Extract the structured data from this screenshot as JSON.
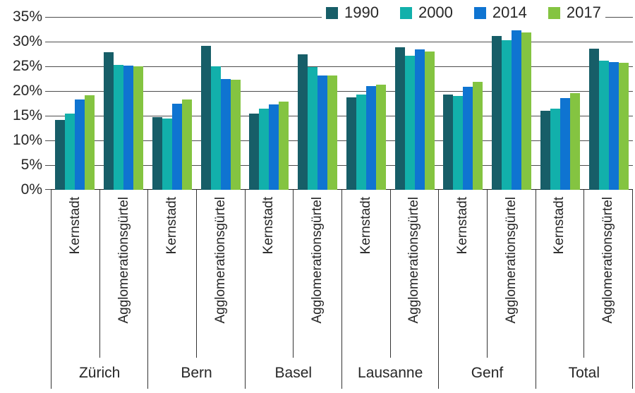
{
  "chart_data": {
    "type": "bar",
    "title": "",
    "unit": "%",
    "ylim": [
      0,
      35
    ],
    "ytick_step": 5,
    "ytick_labels": [
      "0%",
      "5%",
      "10%",
      "15%",
      "20%",
      "25%",
      "30%",
      "35%"
    ],
    "grid": true,
    "legend_position": "top-right",
    "series": [
      {
        "name": "1990",
        "color": "#175e68"
      },
      {
        "name": "2000",
        "color": "#12b0ab"
      },
      {
        "name": "2014",
        "color": "#0f74d1"
      },
      {
        "name": "2017",
        "color": "#84c441"
      }
    ],
    "groups": [
      {
        "label": "Zürich",
        "clusters": [
          {
            "label": "Kernstadt",
            "values": [
              14.2,
              15.5,
              18.3,
              19.1
            ]
          },
          {
            "label": "Agglomerationsgürtel",
            "values": [
              27.8,
              25.3,
              25.1,
              25.0
            ]
          }
        ]
      },
      {
        "label": "Bern",
        "clusters": [
          {
            "label": "Kernstadt",
            "values": [
              14.7,
              14.4,
              17.4,
              18.3
            ]
          },
          {
            "label": "Agglomerationsgürtel",
            "values": [
              29.1,
              25.0,
              22.5,
              22.3
            ]
          }
        ]
      },
      {
        "label": "Basel",
        "clusters": [
          {
            "label": "Kernstadt",
            "values": [
              15.5,
              16.5,
              17.3,
              17.9
            ]
          },
          {
            "label": "Agglomerationsgürtel",
            "values": [
              27.4,
              24.9,
              23.2,
              23.1
            ]
          }
        ]
      },
      {
        "label": "Lausanne",
        "clusters": [
          {
            "label": "Kernstadt",
            "values": [
              18.7,
              19.3,
              21.0,
              21.3
            ]
          },
          {
            "label": "Agglomerationsgürtel",
            "values": [
              28.9,
              27.2,
              28.4,
              28.0
            ]
          }
        ]
      },
      {
        "label": "Genf",
        "clusters": [
          {
            "label": "Kernstadt",
            "values": [
              19.3,
              19.0,
              20.9,
              21.8
            ]
          },
          {
            "label": "Agglomerationsgürtel",
            "values": [
              31.2,
              30.3,
              32.3,
              31.8
            ]
          }
        ]
      },
      {
        "label": "Total",
        "clusters": [
          {
            "label": "Kernstadt",
            "values": [
              16.0,
              16.5,
              18.6,
              19.6
            ]
          },
          {
            "label": "Agglomerationsgürtel",
            "values": [
              28.6,
              26.2,
              25.9,
              25.7
            ]
          }
        ]
      }
    ]
  }
}
